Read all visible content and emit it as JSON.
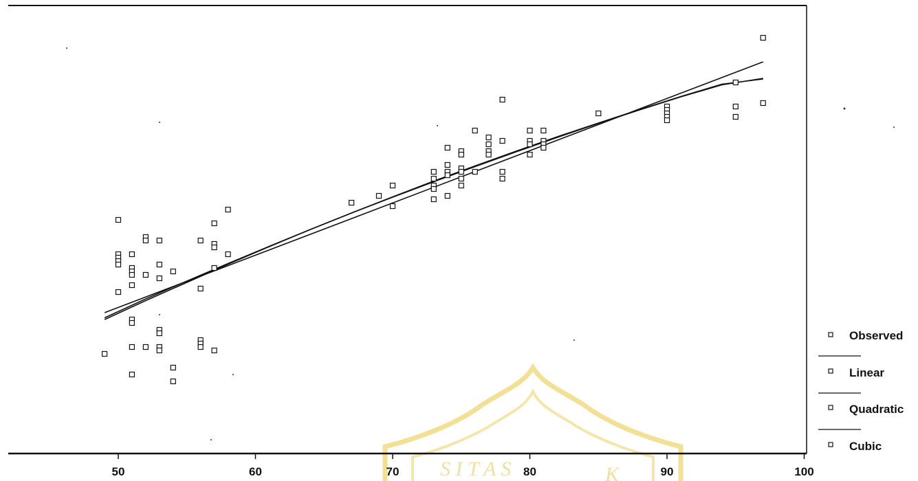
{
  "chart_data": {
    "type": "scatter",
    "title": "",
    "xlabel": "",
    "ylabel": "",
    "xlim": [
      40,
      100
    ],
    "ylim": [
      0,
      100
    ],
    "x_ticks": [
      50,
      60,
      70,
      80,
      90,
      100
    ],
    "grid": false,
    "legend_placement": "bottom-right",
    "legend": [
      "Observed",
      "Linear",
      "Quadratic",
      "Cubic"
    ],
    "observed": [
      {
        "x": 49,
        "y": 21
      },
      {
        "x": 50,
        "y": 60
      },
      {
        "x": 50,
        "y": 50
      },
      {
        "x": 50,
        "y": 49
      },
      {
        "x": 50,
        "y": 48
      },
      {
        "x": 50,
        "y": 47
      },
      {
        "x": 50,
        "y": 39
      },
      {
        "x": 51,
        "y": 50
      },
      {
        "x": 51,
        "y": 46
      },
      {
        "x": 51,
        "y": 45
      },
      {
        "x": 51,
        "y": 44
      },
      {
        "x": 51,
        "y": 41
      },
      {
        "x": 51,
        "y": 31
      },
      {
        "x": 51,
        "y": 30
      },
      {
        "x": 51,
        "y": 23
      },
      {
        "x": 51,
        "y": 15
      },
      {
        "x": 52,
        "y": 55
      },
      {
        "x": 52,
        "y": 54
      },
      {
        "x": 52,
        "y": 44
      },
      {
        "x": 52,
        "y": 23
      },
      {
        "x": 53,
        "y": 54
      },
      {
        "x": 53,
        "y": 47
      },
      {
        "x": 53,
        "y": 43
      },
      {
        "x": 53,
        "y": 28
      },
      {
        "x": 53,
        "y": 27
      },
      {
        "x": 53,
        "y": 23
      },
      {
        "x": 53,
        "y": 22
      },
      {
        "x": 54,
        "y": 45
      },
      {
        "x": 54,
        "y": 17
      },
      {
        "x": 54,
        "y": 13
      },
      {
        "x": 56,
        "y": 54
      },
      {
        "x": 56,
        "y": 40
      },
      {
        "x": 56,
        "y": 25
      },
      {
        "x": 56,
        "y": 24
      },
      {
        "x": 56,
        "y": 23
      },
      {
        "x": 57,
        "y": 59
      },
      {
        "x": 57,
        "y": 53
      },
      {
        "x": 57,
        "y": 52
      },
      {
        "x": 57,
        "y": 46
      },
      {
        "x": 57,
        "y": 22
      },
      {
        "x": 58,
        "y": 63
      },
      {
        "x": 58,
        "y": 50
      },
      {
        "x": 67,
        "y": 65
      },
      {
        "x": 69,
        "y": 67
      },
      {
        "x": 70,
        "y": 70
      },
      {
        "x": 70,
        "y": 64
      },
      {
        "x": 73,
        "y": 74
      },
      {
        "x": 73,
        "y": 72
      },
      {
        "x": 73,
        "y": 70
      },
      {
        "x": 73,
        "y": 69
      },
      {
        "x": 73,
        "y": 66
      },
      {
        "x": 74,
        "y": 81
      },
      {
        "x": 74,
        "y": 76
      },
      {
        "x": 74,
        "y": 74
      },
      {
        "x": 74,
        "y": 73
      },
      {
        "x": 74,
        "y": 67
      },
      {
        "x": 75,
        "y": 80
      },
      {
        "x": 75,
        "y": 79
      },
      {
        "x": 75,
        "y": 75
      },
      {
        "x": 75,
        "y": 74
      },
      {
        "x": 75,
        "y": 72
      },
      {
        "x": 75,
        "y": 70
      },
      {
        "x": 76,
        "y": 86
      },
      {
        "x": 76,
        "y": 74
      },
      {
        "x": 77,
        "y": 84
      },
      {
        "x": 77,
        "y": 82
      },
      {
        "x": 77,
        "y": 80
      },
      {
        "x": 77,
        "y": 79
      },
      {
        "x": 78,
        "y": 95
      },
      {
        "x": 78,
        "y": 83
      },
      {
        "x": 78,
        "y": 74
      },
      {
        "x": 78,
        "y": 72
      },
      {
        "x": 80,
        "y": 86
      },
      {
        "x": 80,
        "y": 83
      },
      {
        "x": 80,
        "y": 82
      },
      {
        "x": 80,
        "y": 79
      },
      {
        "x": 81,
        "y": 86
      },
      {
        "x": 81,
        "y": 83
      },
      {
        "x": 81,
        "y": 82
      },
      {
        "x": 81,
        "y": 81
      },
      {
        "x": 85,
        "y": 91
      },
      {
        "x": 90,
        "y": 93
      },
      {
        "x": 90,
        "y": 92
      },
      {
        "x": 90,
        "y": 91
      },
      {
        "x": 90,
        "y": 90
      },
      {
        "x": 90,
        "y": 89
      },
      {
        "x": 95,
        "y": 100
      },
      {
        "x": 95,
        "y": 93
      },
      {
        "x": 95,
        "y": 90
      },
      {
        "x": 97,
        "y": 113
      },
      {
        "x": 97,
        "y": 94
      }
    ],
    "fits": [
      {
        "name": "Linear",
        "x": [
          49,
          97
        ],
        "y": [
          33,
          106
        ]
      },
      {
        "name": "Quadratic",
        "x": [
          49,
          52,
          55,
          58,
          61,
          64,
          67,
          70,
          73,
          76,
          79,
          82,
          85,
          88,
          91,
          94,
          97
        ],
        "y": [
          31,
          36.5,
          41.8,
          47.1,
          52.2,
          57.2,
          62.0,
          66.7,
          71.3,
          75.7,
          80.0,
          84.2,
          88.2,
          92.1,
          95.9,
          99.5,
          101
        ]
      },
      {
        "name": "Cubic",
        "x": [
          49,
          52,
          55,
          58,
          61,
          64,
          67,
          70,
          73,
          76,
          79,
          82,
          85,
          88,
          91,
          94,
          97
        ],
        "y": [
          31.5,
          37.0,
          42.2,
          47.3,
          52.3,
          57.2,
          62.0,
          66.6,
          71.1,
          75.5,
          79.8,
          84.0,
          88.1,
          92.0,
          95.8,
          99.3,
          101.2
        ]
      }
    ]
  }
}
